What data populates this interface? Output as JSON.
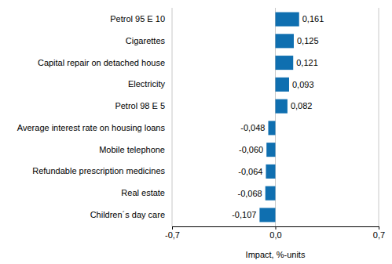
{
  "chart_data": {
    "type": "bar",
    "orientation": "horizontal",
    "categories": [
      "Petrol 95 E 10",
      "Cigarettes",
      "Capital repair on detached house",
      "Electricity",
      "Petrol 98 E 5",
      "Average interest rate on housing loans",
      "Mobile telephone",
      "Refundable prescription medicines",
      "Real estate",
      "Children´s day care"
    ],
    "values": [
      0.161,
      0.125,
      0.121,
      0.093,
      0.082,
      -0.048,
      -0.06,
      -0.064,
      -0.068,
      -0.107
    ],
    "value_labels": [
      "0,161",
      "0,125",
      "0,121",
      "0,093",
      "0,082",
      "-0,048",
      "-0,060",
      "-0,064",
      "-0,068",
      "-0,107"
    ],
    "data_labels": true,
    "color": "#0f6fb0",
    "xlabel": "Impact, %-units",
    "xlim": [
      -0.7,
      0.7
    ],
    "xticks": [
      {
        "value": -0.7,
        "label": "-0,7"
      },
      {
        "value": 0.0,
        "label": "0,0"
      },
      {
        "value": 0.7,
        "label": "0,7"
      }
    ],
    "grid": true
  }
}
